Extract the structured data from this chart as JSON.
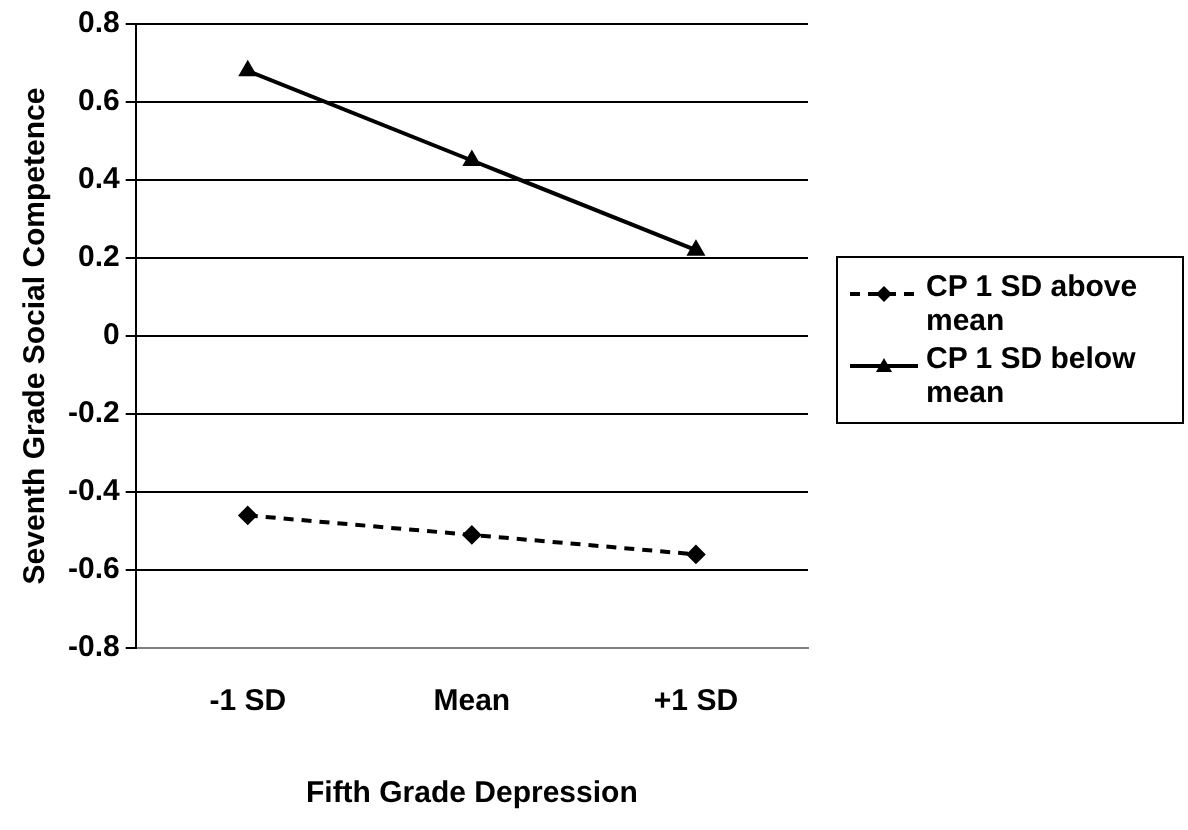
{
  "chart_data": {
    "type": "line",
    "xlabel": "Fifth Grade Depression",
    "ylabel": "Seventh Grade Social Competence",
    "categories": [
      "-1 SD",
      "Mean",
      "+1 SD"
    ],
    "series": [
      {
        "name": "CP 1 SD above mean",
        "color": "#000000",
        "values": [
          -0.46,
          -0.51,
          -0.56
        ],
        "marker": "diamond",
        "line_style": "dashed"
      },
      {
        "name": "CP 1 SD below mean",
        "color": "#000000",
        "values": [
          0.68,
          0.45,
          0.22
        ],
        "marker": "triangle",
        "line_style": "solid"
      }
    ],
    "ylim": [
      -0.8,
      0.8
    ],
    "yticks": [
      -0.8,
      -0.6,
      -0.4,
      -0.2,
      0,
      0.2,
      0.4,
      0.6,
      0.8
    ],
    "grid": "y",
    "legend": "right"
  }
}
